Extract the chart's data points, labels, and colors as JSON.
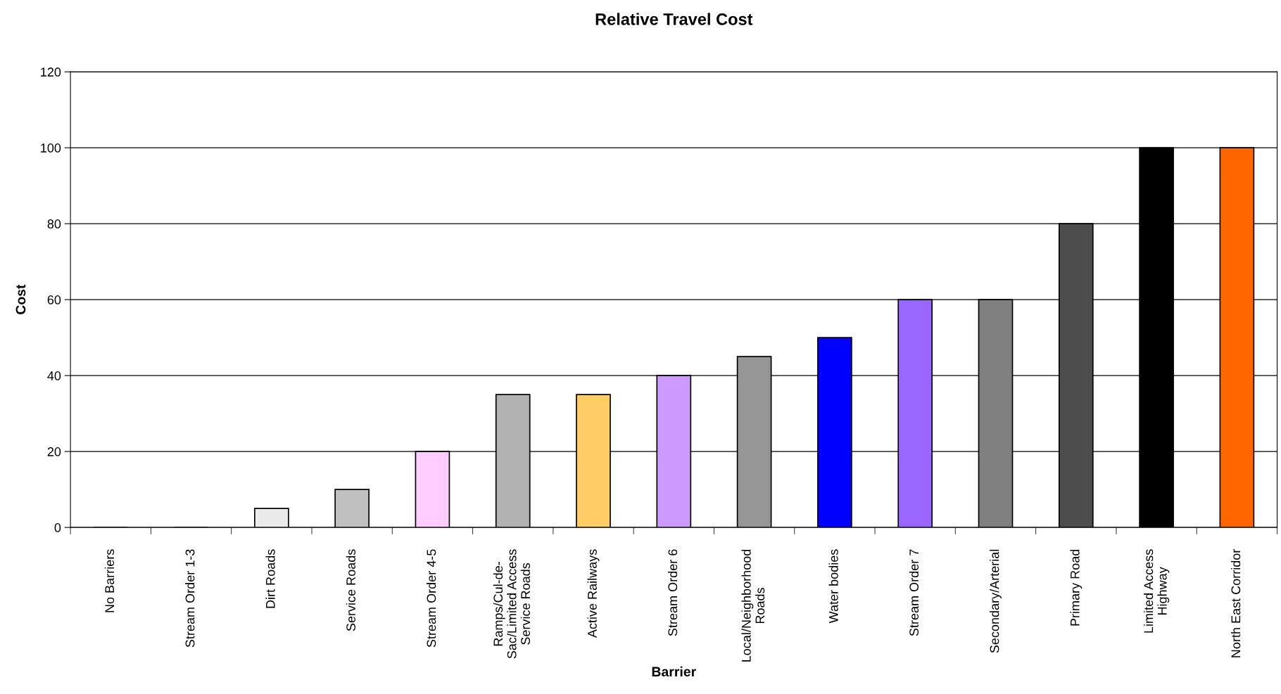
{
  "chart_data": {
    "type": "bar",
    "title": "Relative Travel Cost",
    "xlabel": "Barrier",
    "ylabel": "Cost",
    "categories": [
      "No Barriers",
      "Stream Order 1-3",
      "Dirt Roads",
      "Service Roads",
      "Stream Order 4-5",
      "Ramps/Cul-de-\nSac/Limited Access\nService Roads",
      "Active Railways",
      "Stream Order 6",
      "Local/Neighborhood\nRoads",
      "Water bodies",
      "Stream Order 7",
      "Secondary/Arterial",
      "Primary Road",
      "Limited Access\nHighway",
      "North East Corridor"
    ],
    "values": [
      0,
      0,
      5,
      10,
      20,
      35,
      35,
      40,
      45,
      50,
      60,
      60,
      80,
      100,
      100
    ],
    "colors": [
      "#000000",
      "#000000",
      "#eaeaea",
      "#c0c0c0",
      "#ffccff",
      "#b2b2b2",
      "#ffcc66",
      "#cc99ff",
      "#969696",
      "#0000ff",
      "#9966ff",
      "#808080",
      "#4d4d4d",
      "#000000",
      "#ff6600"
    ],
    "ylim": [
      0,
      120
    ],
    "yticks": [
      0,
      20,
      40,
      60,
      80,
      100,
      120
    ],
    "grid": "y"
  }
}
